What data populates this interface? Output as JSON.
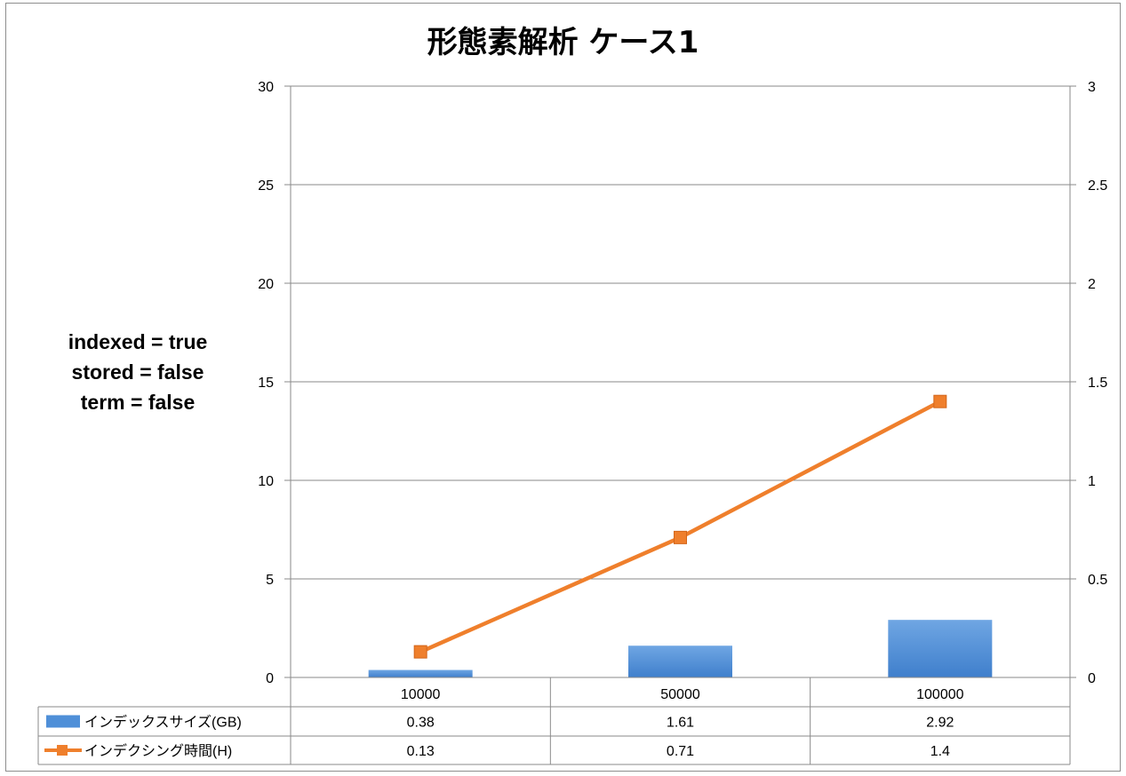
{
  "chart_data": {
    "type": "bar+line",
    "title": "形態素解析 ケース1",
    "annotation": [
      "indexed = true",
      "stored = false",
      "term = false"
    ],
    "categories": [
      "10000",
      "50000",
      "100000"
    ],
    "y_left": {
      "ticks": [
        "0",
        "5",
        "10",
        "15",
        "20",
        "25",
        "30"
      ],
      "ylim": [
        0,
        30
      ]
    },
    "y_right": {
      "ticks": [
        "0",
        "0.5",
        "1",
        "1.5",
        "2",
        "2.5",
        "3"
      ],
      "ylim": [
        0,
        3
      ]
    },
    "grid": true,
    "legend": "data-table",
    "series": [
      {
        "name": "インデックスサイズ(GB)",
        "type": "bar",
        "axis": "left",
        "values": [
          0.38,
          1.61,
          2.92
        ],
        "labels": [
          "0.38",
          "1.61",
          "2.92"
        ],
        "color": "#4f8fd8"
      },
      {
        "name": "インデクシング時間(H)",
        "type": "line",
        "axis": "right",
        "marker": "square",
        "values": [
          0.13,
          0.71,
          1.4
        ],
        "labels": [
          "0.13",
          "0.71",
          "1.4"
        ],
        "color": "#ef7f2c"
      }
    ]
  }
}
